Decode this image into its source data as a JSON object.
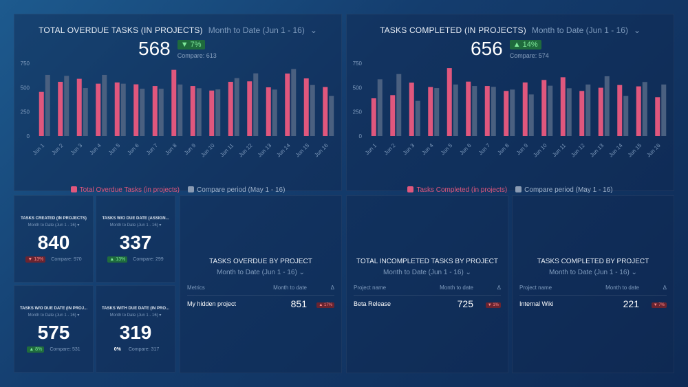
{
  "colors": {
    "primary": "#e0577d",
    "compare": "#4a6080",
    "up": "#7ee89a",
    "down": "#ff8a8a"
  },
  "charts": {
    "overdue": {
      "title": "TOTAL OVERDUE TASKS (IN PROJECTS)",
      "period": "Month to Date (Jun 1 - 16)",
      "value": "568",
      "delta": "▼ 7%",
      "compare": "Compare: 613",
      "legend_primary": "Total Overdue Tasks (in projects)",
      "legend_compare": "Compare period (May 1 - 16)"
    },
    "completed": {
      "title": "TASKS COMPLETED (IN PROJECTS)",
      "period": "Month to Date (Jun 1 - 16)",
      "value": "656",
      "delta": "▲ 14%",
      "compare": "Compare: 574",
      "legend_primary": "Tasks Completed (in projects)",
      "legend_compare": "Compare period (May 1 - 16)"
    }
  },
  "chart_data": [
    {
      "type": "bar",
      "title": "TOTAL OVERDUE TASKS (IN PROJECTS)",
      "categories": [
        "Jun 1",
        "Jun 2",
        "Jun 3",
        "Jun 4",
        "Jun 5",
        "Jun 6",
        "Jun 7",
        "Jun 8",
        "Jun 9",
        "Jun 10",
        "Jun 11",
        "Jun 12",
        "Jun 13",
        "Jun 14",
        "Jun 15",
        "Jun 16"
      ],
      "yticks": [
        0,
        250,
        500,
        750
      ],
      "ylim": [
        0,
        750
      ],
      "grid": false,
      "legend": "bottom",
      "series": [
        {
          "name": "Total Overdue Tasks (in projects)",
          "values": [
            455,
            559,
            590,
            540,
            552,
            533,
            516,
            682,
            516,
            469,
            559,
            564,
            502,
            644,
            594,
            505
          ]
        },
        {
          "name": "Compare period (May 1 - 16)",
          "values": [
            630,
            620,
            495,
            630,
            540,
            488,
            488,
            531,
            493,
            481,
            597,
            646,
            479,
            691,
            526,
            413
          ]
        }
      ]
    },
    {
      "type": "bar",
      "title": "TASKS COMPLETED (IN PROJECTS)",
      "categories": [
        "Jun 1",
        "Jun 2",
        "Jun 3",
        "Jun 4",
        "Jun 5",
        "Jun 6",
        "Jun 7",
        "Jun 8",
        "Jun 9",
        "Jun 10",
        "Jun 11",
        "Jun 12",
        "Jun 13",
        "Jun 14",
        "Jun 15",
        "Jun 16"
      ],
      "yticks": [
        0,
        250,
        500,
        750
      ],
      "ylim": [
        0,
        750
      ],
      "grid": false,
      "legend": "bottom",
      "series": [
        {
          "name": "Tasks Completed (in projects)",
          "values": [
            389,
            422,
            550,
            505,
            700,
            561,
            516,
            465,
            552,
            578,
            606,
            465,
            498,
            526,
            512,
            401
          ]
        },
        {
          "name": "Compare period (May 1 - 16)",
          "values": [
            585,
            639,
            363,
            495,
            531,
            516,
            507,
            479,
            429,
            519,
            493,
            531,
            616,
            413,
            557,
            531
          ]
        }
      ]
    }
  ],
  "cards": [
    {
      "title": "TASKS CREATED (IN PROJECTS)",
      "period": "Month to Date (Jun 1 - 16) ▾",
      "value": "840",
      "delta": "▼ 13%",
      "dir": "down",
      "compare": "Compare: 970"
    },
    {
      "title": "TASKS W/O DUE DATE (ASSIGN...",
      "period": "Month to Date (Jun 1 - 16) ▾",
      "value": "337",
      "delta": "▲ 13%",
      "dir": "up",
      "compare": "Compare: 299"
    },
    {
      "title": "TASKS W/O DUE DATE (IN PROJ...",
      "period": "Month to Date (Jun 1 - 16) ▾",
      "value": "575",
      "delta": "▲ 8%",
      "dir": "up",
      "compare": "Compare: 531"
    },
    {
      "title": "TASKS WITH DUE DATE (IN PRO...",
      "period": "Month to Date (Jun 1 - 16) ▾",
      "value": "319",
      "delta": "0%",
      "dir": "flat",
      "compare": "Compare: 317"
    }
  ],
  "tables": [
    {
      "title": "TASKS OVERDUE BY PROJECT",
      "period": "Month to Date (Jun 1 - 16) ⌄",
      "cols": [
        "Metrics",
        "Month to date",
        "Δ"
      ],
      "row": {
        "name": "My hidden project",
        "value": "851",
        "delta": "▲ 17%",
        "dir": "down"
      }
    },
    {
      "title": "TOTAL INCOMPLETED TASKS BY PROJECT",
      "period": "Month to Date (Jun 1 - 16) ⌄",
      "cols": [
        "Project name",
        "Month to date",
        "Δ"
      ],
      "row": {
        "name": "Beta Release",
        "value": "725",
        "delta": "▼ 1%",
        "dir": "down"
      }
    },
    {
      "title": "TASKS COMPLETED BY PROJECT",
      "period": "Month to Date (Jun 1 - 16) ⌄",
      "cols": [
        "Project name",
        "Month to date",
        "Δ"
      ],
      "row": {
        "name": "Internal Wiki",
        "value": "221",
        "delta": "▼ 7%",
        "dir": "down"
      }
    }
  ]
}
